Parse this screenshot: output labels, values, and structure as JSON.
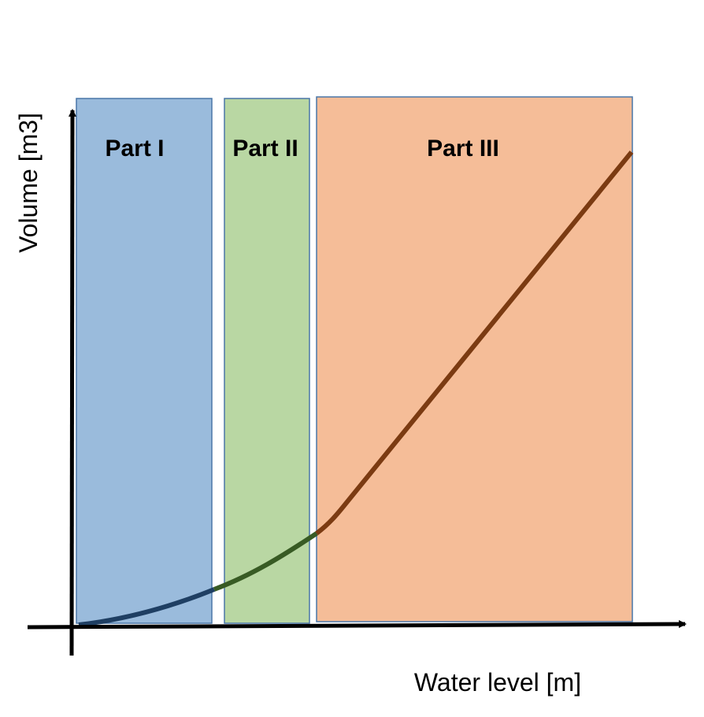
{
  "diagram": {
    "axes": {
      "x_label": "Water level [m]",
      "y_label": "Volume [m3]"
    },
    "parts": [
      {
        "label": "Part I",
        "fill": "#9ABBDC",
        "stroke": "#4A76A8",
        "curve_color": "#1F3F63"
      },
      {
        "label": "Part II",
        "fill": "#B9D7A3",
        "stroke": "#4A76A8",
        "curve_color": "#385B24"
      },
      {
        "label": "Part III",
        "fill": "#F5BD98",
        "stroke": "#4A76A8",
        "curve_color": "#7B3B12"
      }
    ],
    "axis_color": "#000000"
  }
}
